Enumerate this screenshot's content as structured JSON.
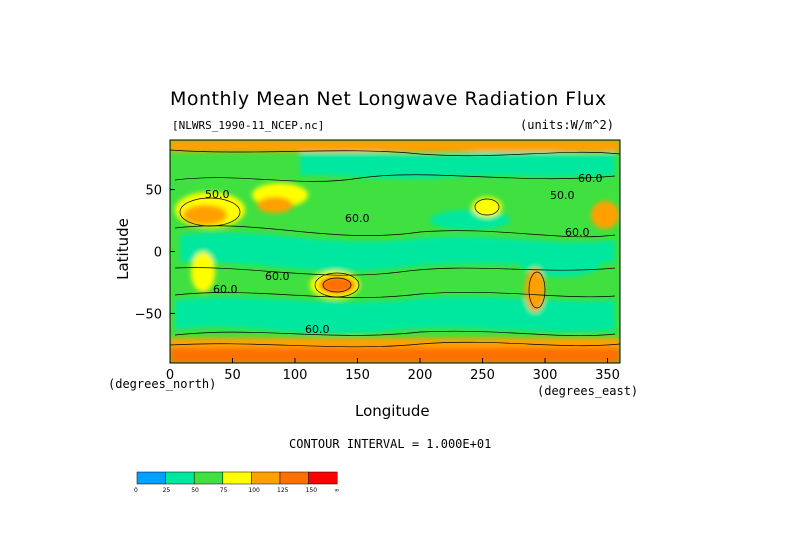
{
  "chart_data": {
    "type": "heatmap",
    "title": "Monthly Mean Net Longwave Radiation Flux",
    "source_label": "[NLWRS_1990-11_NCEP.nc]",
    "units_label": "(units:W/m^2)",
    "xlabel": "Longitude",
    "ylabel": "Latitude",
    "x_unit_label": "(degrees_north)",
    "y_unit_label": "(degrees_east)",
    "xlim": [
      0,
      360
    ],
    "ylim": [
      -90,
      90
    ],
    "x_ticks": [
      0,
      50,
      100,
      150,
      200,
      250,
      300,
      350
    ],
    "y_ticks": [
      50,
      0,
      -50
    ],
    "y_tick_labels": [
      "50",
      "0",
      "−50"
    ],
    "contour_interval_text": "CONTOUR INTERVAL = 1.000E+01",
    "contour_labels": [
      "50.0",
      "60.0",
      "60.0",
      "60.0",
      "60.0",
      "60.0",
      "60.0",
      "50.0"
    ],
    "colorbar": {
      "levels": [
        "0",
        "25",
        "50",
        "75",
        "100",
        "125",
        "150",
        "∞"
      ],
      "colors": [
        "#00a0ff",
        "#00e8a0",
        "#40e040",
        "#ffff00",
        "#ffa000",
        "#ff7000",
        "#ff0000"
      ]
    }
  }
}
